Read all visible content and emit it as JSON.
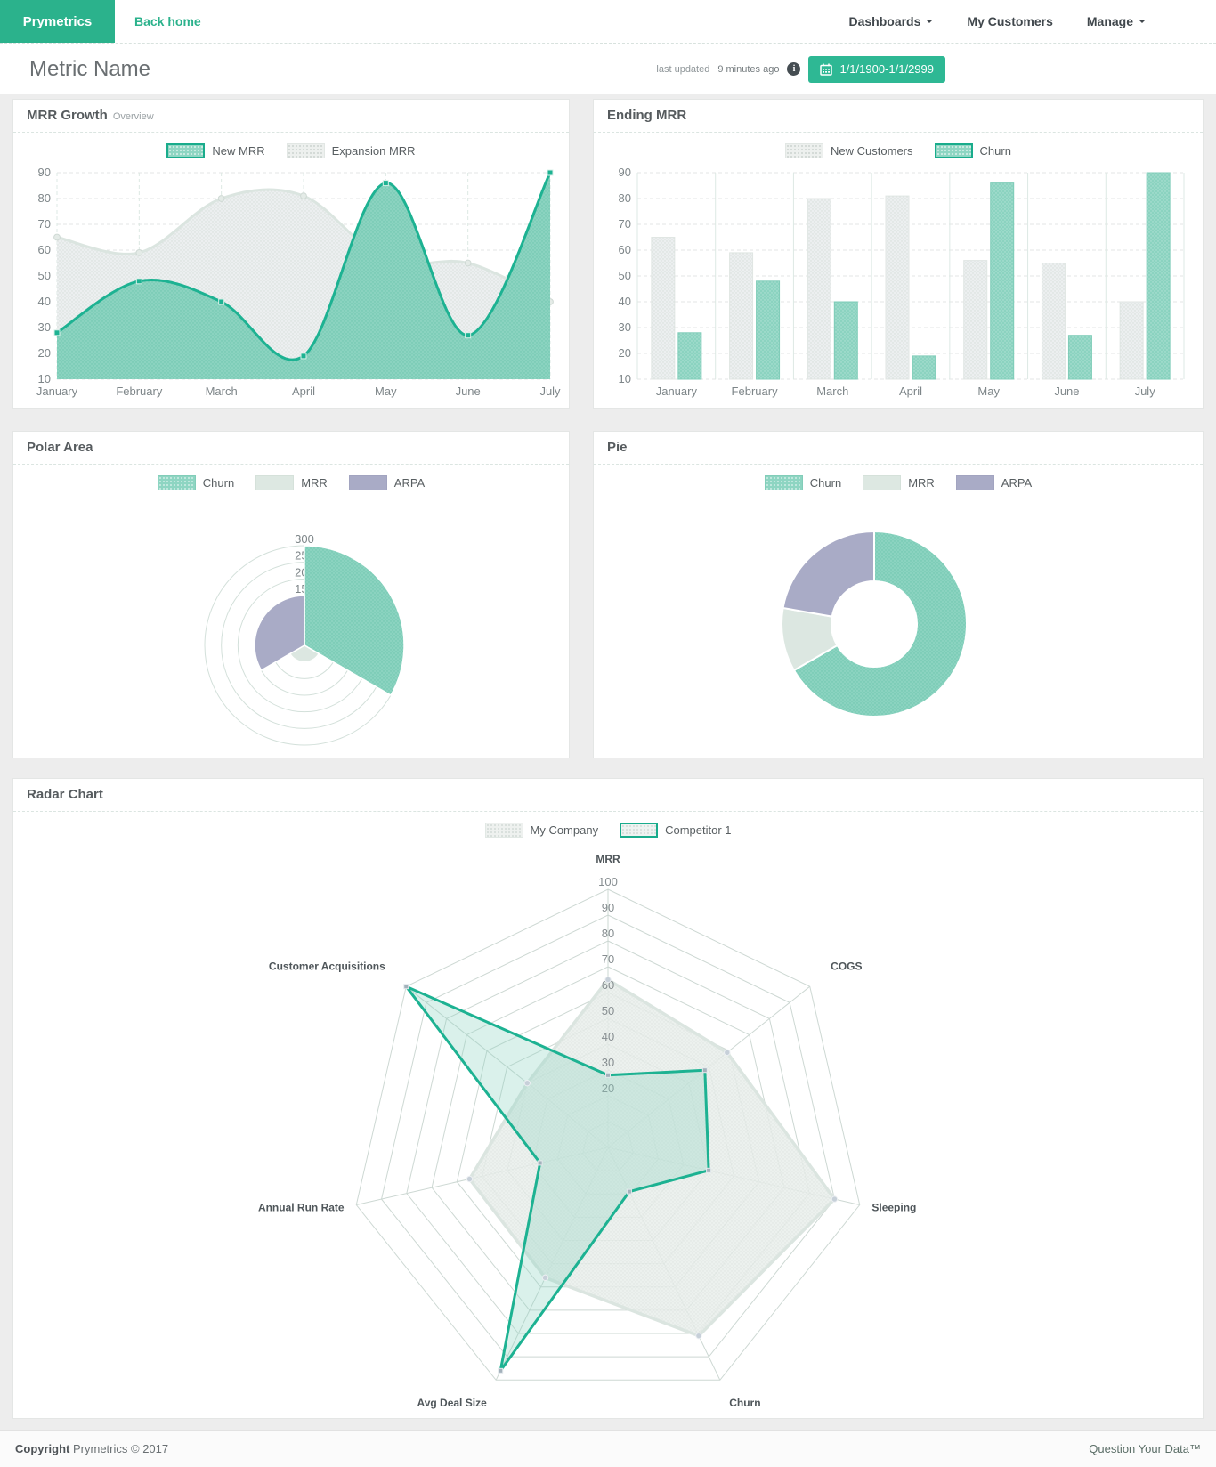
{
  "navbar": {
    "brand": "Prymetrics",
    "back_home": "Back home",
    "items": [
      {
        "label": "Dashboards",
        "caret": true
      },
      {
        "label": "My Customers",
        "caret": false
      },
      {
        "label": "Manage",
        "caret": true
      }
    ]
  },
  "header": {
    "title": "Metric Name",
    "last_updated_label": "last updated",
    "last_updated_value": "9 minutes ago",
    "info_glyph": "i",
    "date_range": "1/1/1900-1/1/2999"
  },
  "panels": {
    "mrr_growth": {
      "title": "MRR Growth",
      "subtitle": "Overview"
    },
    "ending_mrr": {
      "title": "Ending MRR"
    },
    "polar_area": {
      "title": "Polar Area"
    },
    "pie": {
      "title": "Pie"
    },
    "radar": {
      "title": "Radar Chart"
    }
  },
  "footer": {
    "copyright_label": "Copyright",
    "copyright_text": " Prymetrics © 2017",
    "tagline": "Question Your Data™"
  },
  "colors": {
    "accent": "#2bb28c",
    "accent_button": "#2eb894",
    "teal_stroke": "#1db292",
    "teal_fill": "#8bd3c0",
    "teal_dot": "#6cc5ad",
    "gray_fill": "#eceff0",
    "gray_dot": "#d7dfda",
    "gray_stroke": "#dbe5e0",
    "purple": "#a9abc6",
    "pale": "#dce7e1",
    "grid_h": "#e3e6e4",
    "grid_v": "#dcе9e3",
    "ring": "#d3e0da",
    "tick_text": "#7e8689",
    "axis_label": "#4f565a"
  },
  "chart_data": [
    {
      "id": "mrr-growth",
      "type": "area",
      "title": "MRR Growth",
      "categories": [
        "January",
        "February",
        "March",
        "April",
        "May",
        "June",
        "July"
      ],
      "series": [
        {
          "name": "New MRR",
          "values": [
            28,
            48,
            40,
            19,
            86,
            27,
            90
          ],
          "style": "teal"
        },
        {
          "name": "Expansion MRR",
          "values": [
            65,
            59,
            80,
            81,
            56,
            55,
            40
          ],
          "style": "gray"
        }
      ],
      "legend": [
        {
          "label": "New MRR",
          "swatch": "teal-border"
        },
        {
          "label": "Expansion MRR",
          "swatch": "gray"
        }
      ],
      "ylim": [
        10,
        90
      ],
      "ystep": 10,
      "grid": true,
      "legend_position": "top",
      "smooth": true
    },
    {
      "id": "ending-mrr",
      "type": "bar",
      "title": "Ending MRR",
      "categories": [
        "January",
        "February",
        "March",
        "April",
        "May",
        "June",
        "July"
      ],
      "series": [
        {
          "name": "New Customers",
          "values": [
            65,
            59,
            80,
            81,
            56,
            55,
            40
          ],
          "style": "gray"
        },
        {
          "name": "Churn",
          "values": [
            28,
            48,
            40,
            19,
            86,
            27,
            90
          ],
          "style": "teal"
        }
      ],
      "legend": [
        {
          "label": "New Customers",
          "swatch": "gray"
        },
        {
          "label": "Churn",
          "swatch": "teal-border"
        }
      ],
      "ylim": [
        10,
        90
      ],
      "ystep": 10,
      "grid": true,
      "legend_position": "top"
    },
    {
      "id": "polar-area",
      "type": "polar-area",
      "title": "Polar Area",
      "categories": [
        "Churn",
        "MRR",
        "ARPA"
      ],
      "values": [
        300,
        50,
        150
      ],
      "styles": [
        "teal",
        "pale",
        "purple"
      ],
      "legend": [
        {
          "label": "Churn",
          "swatch": "teal"
        },
        {
          "label": "MRR",
          "swatch": "pale"
        },
        {
          "label": "ARPA",
          "swatch": "purple"
        }
      ],
      "rlim": [
        0,
        300
      ],
      "rstep": 50,
      "visible_tick_labels": [
        300,
        250,
        200
      ],
      "legend_position": "top"
    },
    {
      "id": "pie",
      "type": "doughnut",
      "title": "Pie",
      "categories": [
        "Churn",
        "MRR",
        "ARPA"
      ],
      "values": [
        300,
        50,
        100
      ],
      "styles": [
        "teal",
        "pale",
        "purple"
      ],
      "legend": [
        {
          "label": "Churn",
          "swatch": "teal"
        },
        {
          "label": "MRR",
          "swatch": "pale"
        },
        {
          "label": "ARPA",
          "swatch": "purple"
        }
      ],
      "legend_position": "top"
    },
    {
      "id": "radar",
      "type": "radar",
      "title": "Radar Chart",
      "axes": [
        "MRR",
        "COGS",
        "Sleeping",
        "Churn",
        "Avg Deal Size",
        "Annual Run Rate",
        "Customer Acquisitions"
      ],
      "series": [
        {
          "name": "My Company",
          "values": [
            65,
            59,
            90,
            81,
            56,
            55,
            40
          ],
          "style": "light"
        },
        {
          "name": "Competitor 1",
          "values": [
            28,
            48,
            40,
            19,
            96,
            27,
            100
          ],
          "style": "teal-line"
        }
      ],
      "legend": [
        {
          "label": "My Company",
          "swatch": "light"
        },
        {
          "label": "Competitor 1",
          "swatch": "teal-outline"
        }
      ],
      "rlim": [
        0,
        100
      ],
      "rstep": 10,
      "tick_labels": [
        20,
        30,
        40,
        50,
        60,
        70,
        80,
        90,
        100
      ],
      "legend_position": "top"
    }
  ]
}
